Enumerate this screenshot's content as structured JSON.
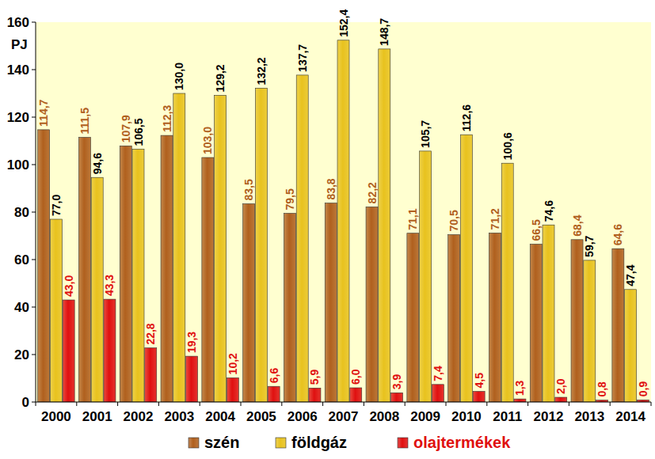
{
  "chart_data": {
    "type": "bar",
    "ylabel": "PJ",
    "categories": [
      "2000",
      "2001",
      "2002",
      "2003",
      "2004",
      "2005",
      "2006",
      "2007",
      "2008",
      "2009",
      "2010",
      "2011",
      "2012",
      "2013",
      "2014"
    ],
    "series": [
      {
        "name": "szén",
        "color": "#b0601e",
        "values": [
          114.7,
          111.5,
          107.9,
          112.3,
          103.0,
          83.5,
          79.5,
          83.8,
          82.2,
          71.1,
          70.5,
          71.2,
          66.5,
          68.4,
          64.6
        ],
        "value_labels": [
          "114,7",
          "111,5",
          "107,9",
          "112,3",
          "103,0",
          "83,5",
          "79,5",
          "83,8",
          "82,2",
          "71,1",
          "70,5",
          "71,2",
          "66,5",
          "68,4",
          "64,6"
        ]
      },
      {
        "name": "földgáz",
        "color": "#e8c21e",
        "values": [
          77.0,
          94.6,
          106.5,
          130.0,
          129.2,
          132.2,
          137.7,
          152.4,
          148.7,
          105.7,
          112.6,
          100.6,
          74.6,
          59.7,
          47.4
        ],
        "value_labels": [
          "77,0",
          "94,6",
          "106,5",
          "130,0",
          "129,2",
          "132,2",
          "137,7",
          "152,4",
          "148,7",
          "105,7",
          "112,6",
          "100,6",
          "74,6",
          "59,7",
          "47,4"
        ]
      },
      {
        "name": "olajtermékek",
        "color": "#e01010",
        "values": [
          43.0,
          43.3,
          22.8,
          19.3,
          10.2,
          6.6,
          5.9,
          6.0,
          3.9,
          7.4,
          4.5,
          1.3,
          2.0,
          0.8,
          0.9
        ],
        "value_labels": [
          "43,0",
          "43,3",
          "22,8",
          "19,3",
          "10,2",
          "6,6",
          "5,9",
          "6,0",
          "3,9",
          "7,4",
          "4,5",
          "1,3",
          "2,0",
          "0,8",
          "0,9"
        ]
      }
    ],
    "ylim": [
      0,
      160
    ],
    "yticks": [
      0,
      20,
      40,
      60,
      80,
      100,
      120,
      140,
      160
    ],
    "grid": false,
    "legend": "bottom",
    "data_labels": true
  }
}
